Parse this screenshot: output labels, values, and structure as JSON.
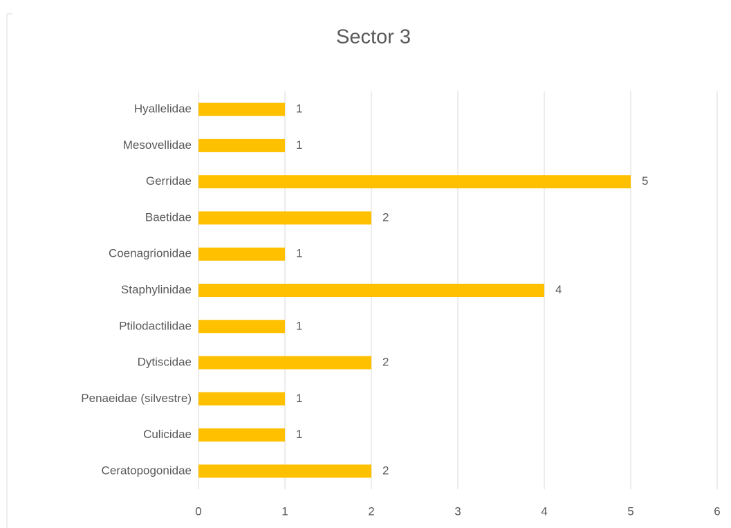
{
  "chart_data": {
    "type": "bar",
    "orientation": "horizontal",
    "title": "Sector 3",
    "categories": [
      "Hyallelidae",
      "Mesovellidae",
      "Gerridae",
      "Baetidae",
      "Coenagrionidae",
      "Staphylinidae",
      "Ptilodactilidae",
      "Dytiscidae",
      "Penaeidae (silvestre)",
      "Culicidae",
      "Ceratopogonidae"
    ],
    "values": [
      1,
      1,
      5,
      2,
      1,
      4,
      1,
      2,
      1,
      1,
      2
    ],
    "color": "#ffc000",
    "xlim": [
      0,
      6
    ],
    "xticks": [
      0,
      1,
      2,
      3,
      4,
      5,
      6
    ],
    "grid": true,
    "data_labels": true
  }
}
